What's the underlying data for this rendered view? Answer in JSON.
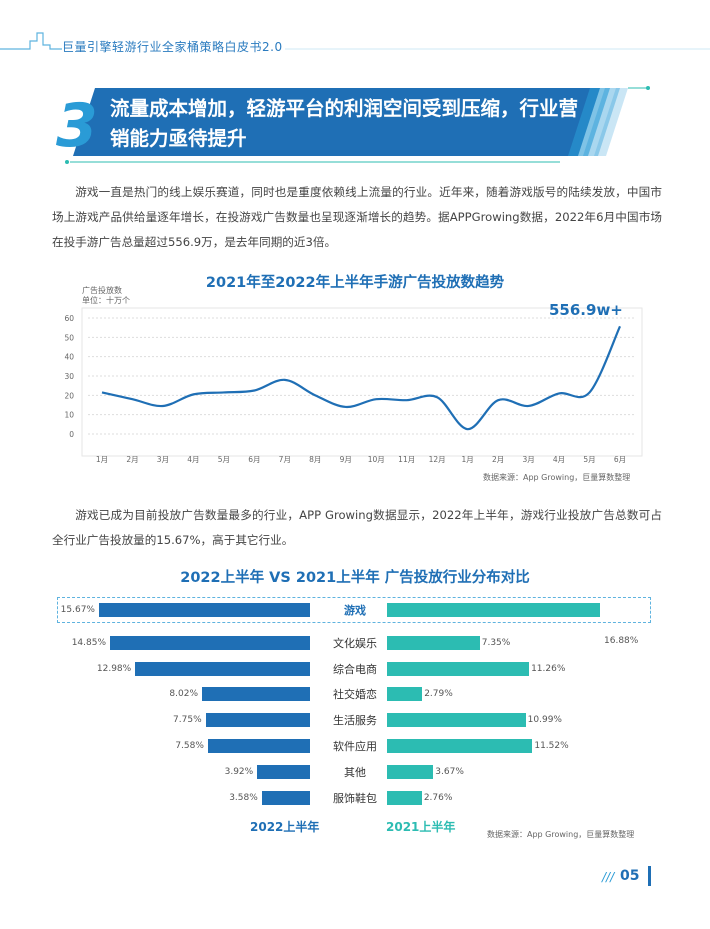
{
  "header": {
    "title": "巨量引擎轻游行业全家桶策略白皮书2.0"
  },
  "section": {
    "number": "3",
    "title": "流量成本增加，轻游平台的利润空间受到压缩，行业营销能力亟待提升"
  },
  "paragraphs": {
    "p1": "游戏一直是热门的线上娱乐赛道，同时也是重度依赖线上流量的行业。近年来，随着游戏版号的陆续发放，中国市场上游戏产品供给量逐年增长，在投游戏广告数量也呈现逐渐增长的趋势。据APPGrowing数据，2022年6月中国市场在投手游广告总量超过556.9万，是去年同期的近3倍。",
    "p2": "游戏已成为目前投放广告数量最多的行业，APP Growing数据显示，2022年上半年，游戏行业投放广告总数可占全行业广告投放量的15.67%，高于其它行业。"
  },
  "chart_data": [
    {
      "type": "line",
      "title": "2021年至2022年上半年手游广告投放数趋势",
      "ylabel": "广告投放数",
      "unit": "单位：十万个",
      "x": [
        "1月",
        "2月",
        "3月",
        "4月",
        "5月",
        "6月",
        "7月",
        "8月",
        "9月",
        "10月",
        "11月",
        "12月",
        "1月",
        "2月",
        "3月",
        "4月",
        "5月",
        "6月"
      ],
      "values": [
        21.5,
        18,
        14.5,
        20.5,
        21.5,
        22.5,
        28,
        20,
        14,
        18,
        17.5,
        19,
        2.5,
        17.5,
        14.5,
        21,
        21.5,
        55.69
      ],
      "yticks": [
        "0",
        "10",
        "20",
        "30",
        "40",
        "50",
        "60"
      ],
      "ylim": [
        0,
        60
      ],
      "annotation": "556.9w+",
      "source": "数据来源：App Growing，巨量算数整理"
    },
    {
      "type": "bar",
      "title": "2022上半年 VS 2021上半年 广告投放行业分布对比",
      "categories": [
        "游戏",
        "文化娱乐",
        "综合电商",
        "社交婚恋",
        "生活服务",
        "软件应用",
        "其他",
        "服饰鞋包"
      ],
      "series": [
        {
          "name": "2022上半年",
          "values": [
            15.67,
            14.85,
            12.98,
            8.02,
            7.75,
            7.58,
            3.92,
            3.58
          ]
        },
        {
          "name": "2021上半年",
          "values": [
            16.88,
            7.35,
            11.26,
            2.79,
            10.99,
            11.52,
            3.67,
            2.76
          ]
        }
      ],
      "labels_left": [
        "15.67%",
        "14.85%",
        "12.98%",
        "8.02%",
        "7.75%",
        "7.58%",
        "3.92%",
        "3.58%"
      ],
      "labels_right": [
        "16.88%",
        "7.35%",
        "11.26%",
        "2.79%",
        "10.99%",
        "11.52%",
        "3.67%",
        "2.76%"
      ],
      "source": "数据来源：App Growing，巨量算数整理"
    }
  ],
  "footer": {
    "page": "05",
    "slashes": "///"
  },
  "colors": {
    "primary": "#1f6fb5",
    "secondary": "#2cbcb2",
    "light": "#2a9bd6"
  }
}
